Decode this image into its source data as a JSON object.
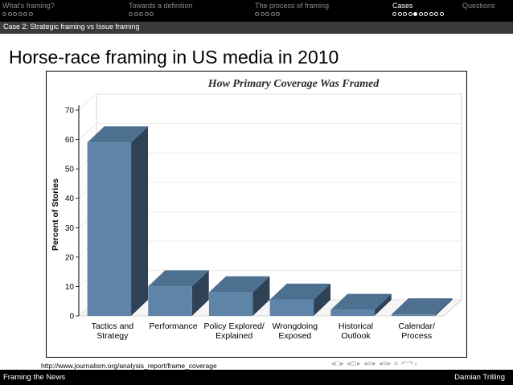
{
  "nav": {
    "sections": [
      {
        "title": "What's framing?",
        "dots": 6,
        "filled": -1,
        "active": false
      },
      {
        "title": "Towards a definition",
        "dots": 5,
        "filled": -1,
        "active": false
      },
      {
        "title": "The process of framing",
        "dots": 5,
        "filled": -1,
        "active": false
      },
      {
        "title": "Cases",
        "dots": 10,
        "filled": 4,
        "active": true
      },
      {
        "title": "Questions",
        "dots": 0,
        "filled": -1,
        "active": false
      }
    ]
  },
  "subsection": "Case 2: Strategic framing vs Issue framing",
  "frame_title": "Horse-race framing in US media in 2010",
  "chart_data": {
    "type": "bar",
    "title": "How Primary Coverage Was Framed",
    "ylabel": "Percent of Stories",
    "xlabel": "",
    "ylim": [
      0,
      70
    ],
    "yticks": [
      0,
      10,
      20,
      30,
      40,
      50,
      60,
      70
    ],
    "categories": [
      [
        "Tactics and",
        "Strategy"
      ],
      [
        "Performance"
      ],
      [
        "Policy Explored/",
        "Explained"
      ],
      [
        "Wrongdoing",
        "Exposed"
      ],
      [
        "Historical",
        "Outlook"
      ],
      [
        "Calendar/",
        "Process"
      ]
    ],
    "values": [
      59,
      10,
      8,
      5.5,
      2,
      0.5
    ],
    "colors": {
      "front": "#5e84a8",
      "top": "#4d6f90",
      "side": "#2e4155",
      "grid": "#e6e6e6"
    }
  },
  "source": "http://www.journalism.org/analysis_report/frame_coverage",
  "nav_symbols": [
    "◂",
    "□",
    "▸",
    "◂",
    "⊡",
    "▸",
    "◂",
    "≡",
    "▸",
    "◂",
    "≡",
    "▸",
    "≡",
    "↶",
    "↷",
    "⌕"
  ],
  "footer": {
    "left": "Framing the News",
    "right": "Damian Trilling"
  }
}
